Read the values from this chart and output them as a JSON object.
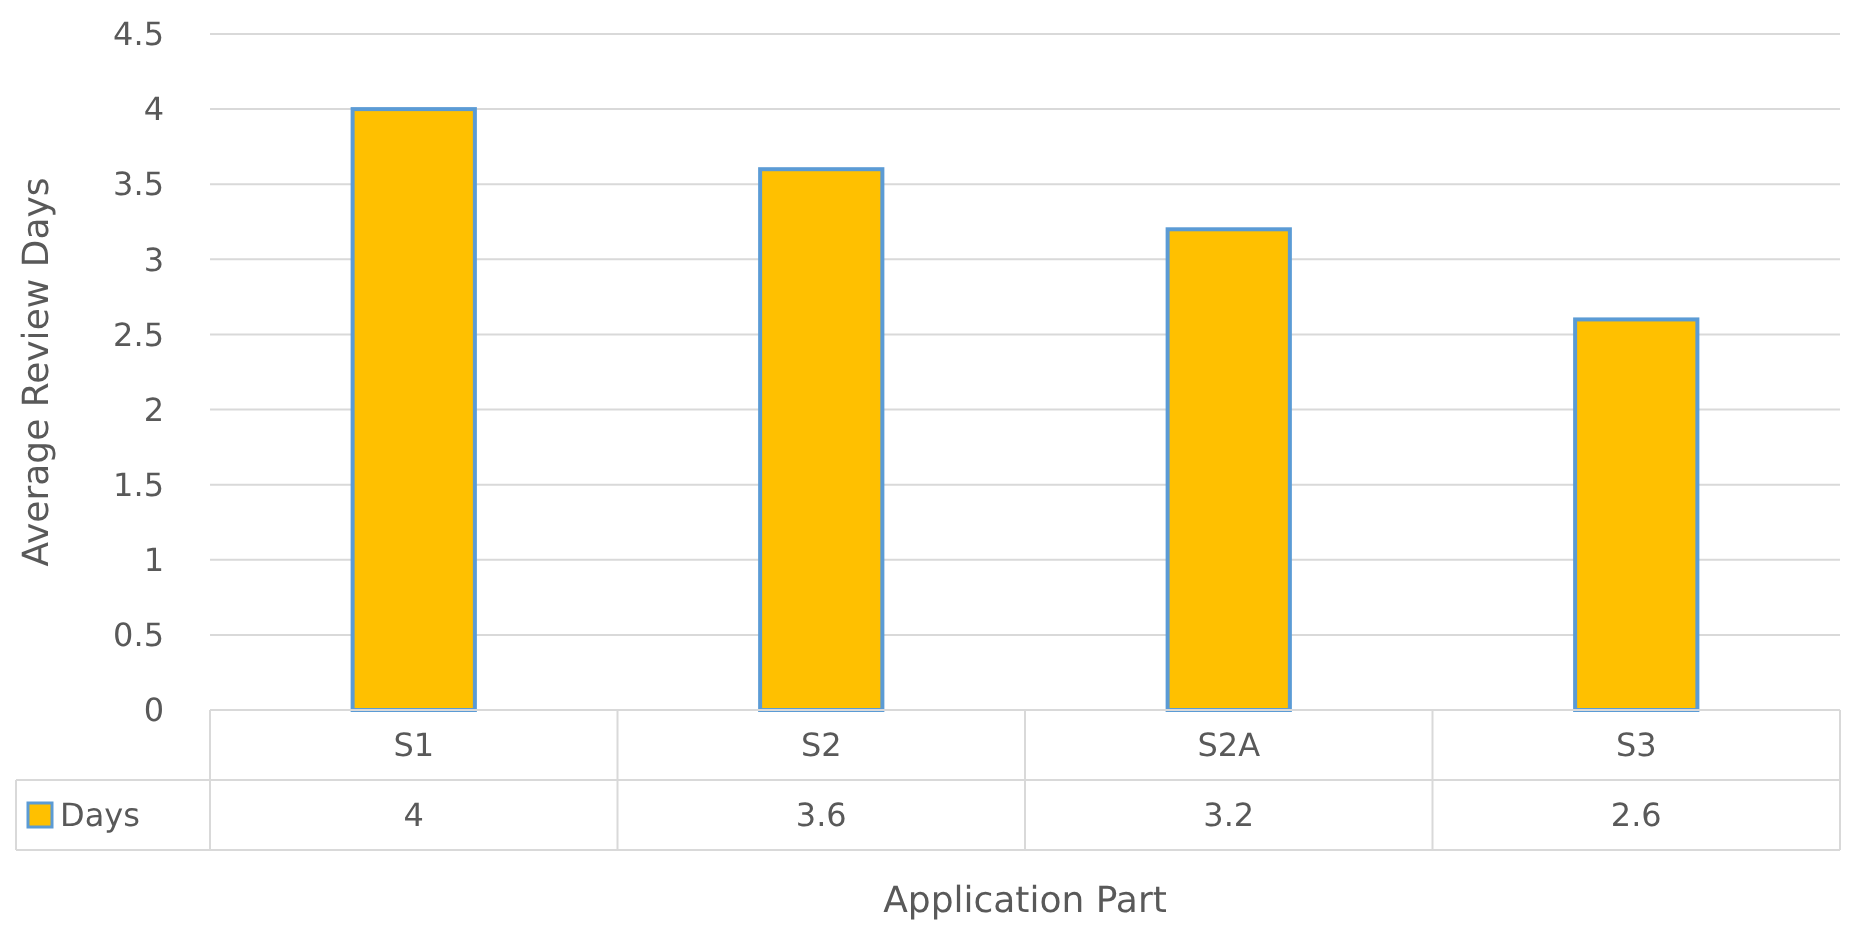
{
  "chart_data": {
    "type": "bar",
    "xlabel": "Application Part",
    "ylabel": "Average Review Days",
    "categories": [
      "S1",
      "S2",
      "S2A",
      "S3"
    ],
    "series": [
      {
        "name": "Days",
        "color": "#ffc000",
        "values": [
          4,
          3.6,
          3.2,
          2.6
        ]
      }
    ],
    "ylim": [
      0,
      4.5
    ],
    "yticks": [
      0,
      0.5,
      1,
      1.5,
      2,
      2.5,
      3,
      3.5,
      4,
      4.5
    ],
    "grid": "y",
    "legend": "bottom left",
    "data_labels": true
  }
}
